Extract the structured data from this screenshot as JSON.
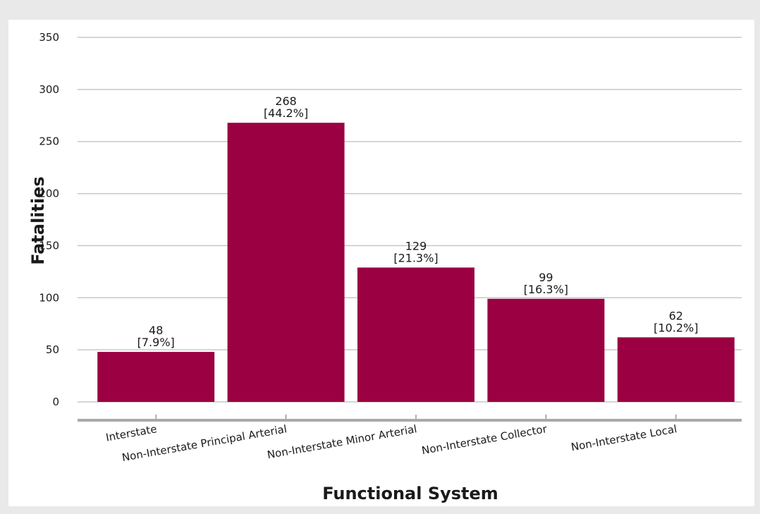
{
  "chart_data": {
    "type": "bar",
    "xlabel": "Functional System",
    "ylabel": "Fatalities",
    "ylim": [
      0,
      350
    ],
    "yticks": [
      0,
      50,
      100,
      150,
      200,
      250,
      300,
      350
    ],
    "categories": [
      "Interstate",
      "Non-Interstate Principal Arterial",
      "Non-Interstate Minor Arterial",
      "Non-Interstate Collector",
      "Non-Interstate Local"
    ],
    "values": [
      48,
      268,
      129,
      99,
      62
    ],
    "percent_labels": [
      "[7.9%]",
      "[44.2%]",
      "[21.3%]",
      "[16.3%]",
      "[10.2%]"
    ],
    "grid": true,
    "legend": "none",
    "colors": {
      "bar": "#9b0042",
      "background": "#e9e9e9",
      "plot_background": "#ffffff",
      "grid": "#c8c8c8",
      "axis": "#a9a9a9"
    }
  }
}
